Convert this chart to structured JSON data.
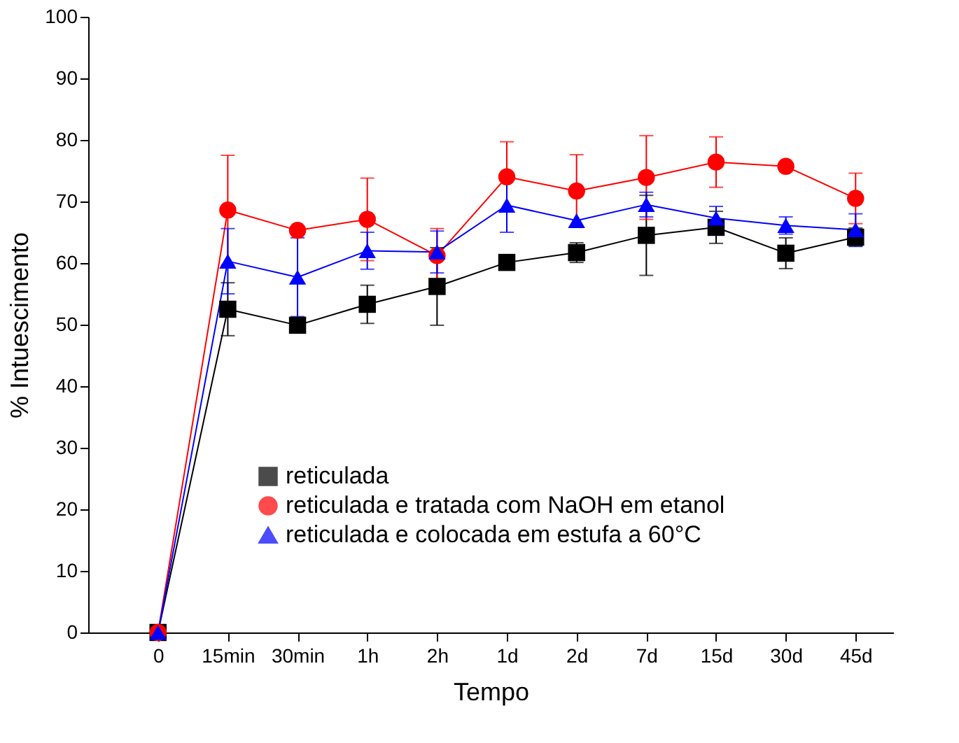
{
  "chart_data": {
    "type": "line",
    "xlabel": "Tempo",
    "ylabel": "% Intuescimento",
    "categories": [
      "0",
      "15min",
      "30min",
      "1h",
      "2h",
      "1d",
      "2d",
      "7d",
      "15d",
      "30d",
      "45d"
    ],
    "ylim": [
      0,
      100
    ],
    "yticks": [
      0,
      10,
      20,
      30,
      40,
      50,
      60,
      70,
      80,
      90,
      100
    ],
    "grid": false,
    "legend": "bottom",
    "line_style": "solid",
    "series": [
      {
        "name": "reticulada",
        "color": "#000000",
        "marker": "square",
        "values": [
          0,
          52.5,
          49.9,
          53.3,
          56.2,
          60.1,
          61.7,
          64.5,
          65.8,
          61.6,
          64.2
        ],
        "errors": [
          null,
          4.3,
          null,
          3.1,
          6.3,
          null,
          1.6,
          6.5,
          2.6,
          2.5,
          1.5
        ]
      },
      {
        "name": "reticulada e tratada com NaOH em etanol",
        "color": "#ff0000",
        "marker": "circle",
        "values": [
          0,
          68.6,
          65.3,
          67.1,
          61.2,
          74.0,
          71.7,
          73.9,
          76.4,
          75.7,
          70.5
        ],
        "errors": [
          null,
          8.9,
          null,
          6.7,
          4.4,
          5.7,
          5.9,
          6.8,
          4.1,
          null,
          4.1
        ]
      },
      {
        "name": "reticulada e colocada em estufa a 60°C",
        "color": "#0000ff",
        "marker": "triangle",
        "values": [
          0,
          60.3,
          57.7,
          62.0,
          61.8,
          69.4,
          66.9,
          69.5,
          67.3,
          66.1,
          65.4
        ],
        "errors": [
          null,
          5.3,
          6.4,
          3.0,
          3.4,
          4.4,
          null,
          2.0,
          1.9,
          1.4,
          2.6
        ]
      }
    ]
  }
}
